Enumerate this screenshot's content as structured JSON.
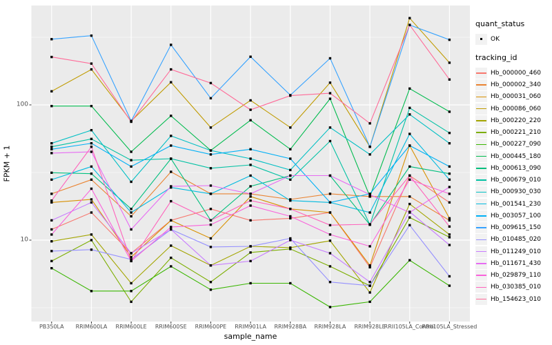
{
  "chart_data": {
    "type": "line",
    "title": "",
    "xlabel": "sample_name",
    "ylabel": "FPKM + 1",
    "y_scale": "log10",
    "y_ticks": [
      10,
      100
    ],
    "y_minor_ticks": [
      3.162,
      31.62,
      316.2
    ],
    "ylim": [
      2.5,
      543
    ],
    "grid": true,
    "panel_bg": "#ebebeb",
    "grid_color": "#ffffff",
    "point_color": "#000000",
    "axis_text_color": "#4d4d4d",
    "categories": [
      "PB350LA",
      "RRIM600LA",
      "RRIM600LE",
      "RRIM600SE",
      "RRIM600PE",
      "RRIM901LA",
      "RRIM928BA",
      "RRIM928LA",
      "RRIM928LE",
      "RRII105LA_Control",
      "RRII105LA_Stressed"
    ],
    "series": [
      {
        "name": "Hb_000000_460",
        "color": "#F8766D",
        "values": [
          12,
          16,
          8,
          14,
          17,
          14,
          14.5,
          16,
          6.3,
          30,
          19
        ]
      },
      {
        "name": "Hb_000002_340",
        "color": "#EA8331",
        "values": [
          22,
          28,
          15,
          32,
          22,
          22,
          20,
          22,
          21,
          21,
          14
        ]
      },
      {
        "name": "Hb_000031_060",
        "color": "#D89000",
        "values": [
          19,
          20,
          7.5,
          14,
          10.3,
          21,
          17,
          16,
          6.5,
          50,
          14.5
        ]
      },
      {
        "name": "Hb_000086_060",
        "color": "#C09B00",
        "values": [
          126,
          183,
          76,
          147,
          68,
          108,
          68,
          146,
          49,
          438,
          205
        ]
      },
      {
        "name": "Hb_000220_220",
        "color": "#A3A500",
        "values": [
          9.8,
          11,
          4.8,
          9.1,
          6.5,
          9,
          8.8,
          9.9,
          4.1,
          18.5,
          11
        ]
      },
      {
        "name": "Hb_000221_210",
        "color": "#7CAE00",
        "values": [
          7,
          10,
          3.5,
          7.4,
          4.9,
          8.1,
          8.6,
          6.4,
          4.6,
          14.7,
          10.5
        ]
      },
      {
        "name": "Hb_000227_090",
        "color": "#39B600",
        "values": [
          6.2,
          4.2,
          4.2,
          6.4,
          4.3,
          4.8,
          4.8,
          3.2,
          3.5,
          7.1,
          4.6
        ]
      },
      {
        "name": "Hb_000445_180",
        "color": "#00BB4E",
        "values": [
          98,
          98,
          45,
          83,
          46,
          77,
          47,
          111,
          21,
          132,
          89
        ]
      },
      {
        "name": "Hb_000613_090",
        "color": "#00BF7D",
        "values": [
          31.5,
          31,
          17,
          40,
          14,
          25,
          30,
          30,
          13,
          35,
          31
        ]
      },
      {
        "name": "Hb_000679_010",
        "color": "#00C1A3",
        "values": [
          49,
          56,
          39,
          40,
          34,
          36,
          28,
          54,
          13,
          95,
          62
        ]
      },
      {
        "name": "Hb_000930_030",
        "color": "#00BFC4",
        "values": [
          52,
          65,
          27,
          59,
          46,
          40,
          33,
          68,
          43,
          85,
          52
        ]
      },
      {
        "name": "Hb_001541_230",
        "color": "#00BAE0",
        "values": [
          28,
          35,
          16,
          24.5,
          22,
          30,
          19.6,
          19,
          16,
          61,
          28
        ]
      },
      {
        "name": "Hb_003057_100",
        "color": "#00B0F6",
        "values": [
          47,
          52,
          35,
          50,
          43,
          47,
          40,
          19,
          22,
          50,
          35
        ]
      },
      {
        "name": "Hb_009615_150",
        "color": "#35A2FF",
        "values": [
          306,
          325,
          76,
          278,
          112,
          227,
          118,
          221,
          49,
          390,
          303
        ]
      },
      {
        "name": "Hb_010485_020",
        "color": "#9590FF",
        "values": [
          8.3,
          8.5,
          7.2,
          12,
          8.9,
          9,
          10.3,
          4.9,
          4.6,
          12.9,
          5.4
        ]
      },
      {
        "name": "Hb_011249_010",
        "color": "#C77CFF",
        "values": [
          14,
          19,
          8,
          12,
          6.5,
          7,
          10,
          8,
          4.9,
          16.2,
          9.2
        ]
      },
      {
        "name": "Hb_011671_430",
        "color": "#E76BF3",
        "values": [
          44,
          45,
          12,
          25,
          25.3,
          22,
          30,
          30,
          21.7,
          16,
          24.7
        ]
      },
      {
        "name": "Hb_029879_110",
        "color": "#FA62DB",
        "values": [
          11,
          24,
          7,
          12.5,
          13,
          18,
          15,
          11,
          9,
          28,
          22
        ]
      },
      {
        "name": "Hb_030385_010",
        "color": "#FF62BC",
        "values": [
          19.6,
          49,
          7,
          19.4,
          14,
          19.6,
          17,
          12.9,
          13.1,
          30,
          12.6
        ]
      },
      {
        "name": "Hb_154623_010",
        "color": "#FF6A98",
        "values": [
          226,
          202,
          75,
          183,
          145,
          92,
          117,
          122,
          73,
          390,
          154
        ]
      }
    ]
  },
  "legend": {
    "quant_title": "quant_status",
    "quant_items": [
      {
        "label": "OK"
      }
    ],
    "tracking_title": "tracking_id"
  }
}
